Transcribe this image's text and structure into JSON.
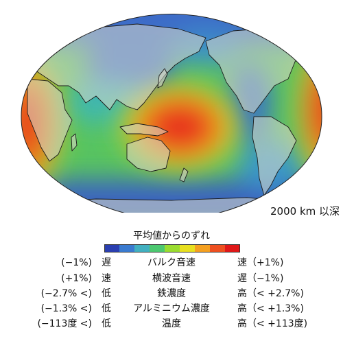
{
  "map": {
    "projection": "Robinson-like, Pacific-centered",
    "depth_label": "2000 km 以深",
    "colors": {
      "land": "#c8c8bc",
      "coast": "#1a1a1a",
      "background": "#ffffff"
    }
  },
  "legend": {
    "title": "平均値からのずれ",
    "colorbar": [
      "#2a3fb0",
      "#3a7bd0",
      "#42b0c0",
      "#4cc870",
      "#9adc30",
      "#e8e020",
      "#f5a020",
      "#ee5020",
      "#e01818"
    ],
    "rows": [
      {
        "low": "(−1%)　遅",
        "quantity": "バルク音速",
        "high": "速（+1%)"
      },
      {
        "low": "(+1%)　速",
        "quantity": "横波音速",
        "high": "遅（−1%)"
      },
      {
        "low": "(−2.7% <)　低",
        "quantity": "鉄濃度",
        "high": "高（< +2.7%)"
      },
      {
        "low": "(−1.3% <)　低",
        "quantity": "アルミニウム濃度",
        "high": "高（< +1.3%)"
      },
      {
        "low": "(−113度 <)　低",
        "quantity": "温度",
        "high": "高（< +113度)"
      }
    ]
  }
}
